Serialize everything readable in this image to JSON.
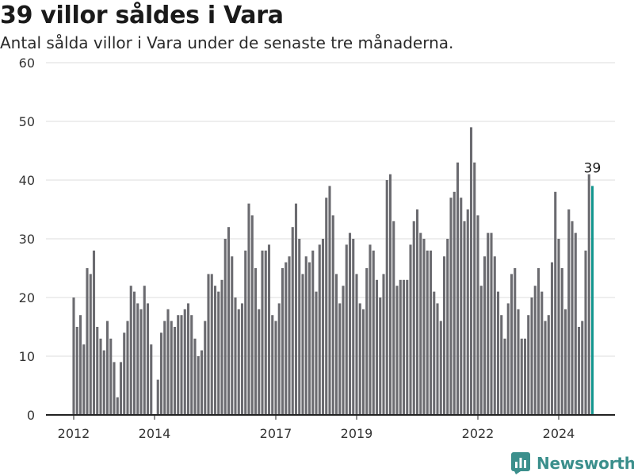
{
  "title": "39 villor såldes i Vara",
  "subtitle": "Antal sålda villor i Vara under de senaste tre månaderna.",
  "brand": "Newsworthy",
  "colors": {
    "bar": "#6b6b70",
    "highlight": "#15968f",
    "brand": "#3b8f8c"
  },
  "chart_data": {
    "type": "bar",
    "title": "39 villor såldes i Vara",
    "subtitle": "Antal sålda villor i Vara under de senaste tre månaderna.",
    "xlabel": "",
    "ylabel": "",
    "ylim": [
      0,
      60
    ],
    "yticks": [
      0,
      10,
      20,
      30,
      40,
      50,
      60
    ],
    "xticks": [
      "2012",
      "2014",
      "2017",
      "2019",
      "2022",
      "2024"
    ],
    "grid": true,
    "start": "2012-01",
    "frequency": "monthly",
    "highlight_label": "39",
    "values": [
      20,
      15,
      17,
      12,
      25,
      24,
      28,
      15,
      13,
      11,
      16,
      13,
      9,
      3,
      9,
      14,
      16,
      22,
      21,
      19,
      18,
      22,
      19,
      12,
      0,
      6,
      14,
      16,
      18,
      16,
      15,
      17,
      17,
      18,
      19,
      17,
      13,
      10,
      11,
      16,
      24,
      24,
      22,
      21,
      23,
      30,
      32,
      27,
      20,
      18,
      19,
      28,
      36,
      34,
      25,
      18,
      28,
      28,
      29,
      17,
      16,
      19,
      25,
      26,
      27,
      32,
      36,
      30,
      24,
      27,
      26,
      28,
      21,
      29,
      30,
      37,
      39,
      34,
      24,
      19,
      22,
      29,
      31,
      30,
      24,
      19,
      18,
      25,
      29,
      28,
      23,
      20,
      24,
      40,
      41,
      33,
      22,
      23,
      23,
      23,
      29,
      33,
      35,
      31,
      30,
      28,
      28,
      21,
      19,
      16,
      27,
      30,
      37,
      38,
      43,
      37,
      33,
      35,
      49,
      43,
      34,
      22,
      27,
      31,
      31,
      27,
      21,
      17,
      13,
      19,
      24,
      25,
      18,
      13,
      13,
      17,
      20,
      22,
      25,
      21,
      16,
      17,
      26,
      38,
      30,
      25,
      18,
      35,
      33,
      31,
      15,
      16,
      28,
      41,
      39
    ]
  }
}
